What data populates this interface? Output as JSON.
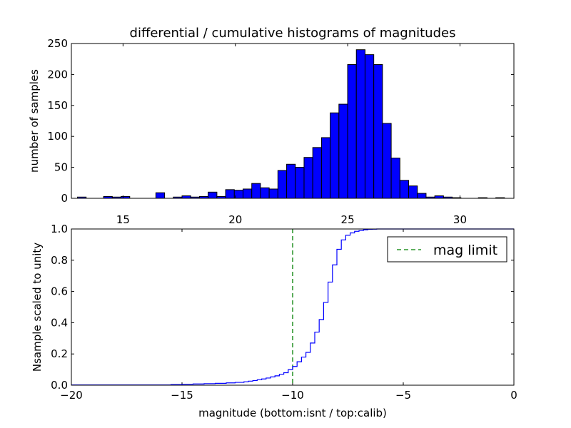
{
  "title": "differential / cumulative histograms of magnitudes",
  "colors": {
    "bar_fill": "#0000ff",
    "bar_edge": "#000000",
    "step_line": "#0000ff",
    "limit_line": "#008000",
    "axes": "#000000",
    "background": "#ffffff"
  },
  "chart_data": [
    {
      "type": "bar",
      "subtype": "histogram",
      "title": "differential / cumulative histograms of magnitudes",
      "xlabel": "",
      "ylabel": "number of samples",
      "xlim": [
        12.7,
        32.4
      ],
      "ylim": [
        0,
        250
      ],
      "xticks": [
        15,
        20,
        25,
        30
      ],
      "xtick_labels": [
        "15",
        "20",
        "25",
        "30"
      ],
      "yticks": [
        0,
        50,
        100,
        150,
        200,
        250
      ],
      "ytick_labels": [
        "0",
        "50",
        "100",
        "150",
        "200",
        "250"
      ],
      "xtick_labels_position": "bottom",
      "bin_start": 12.97,
      "bin_width": 0.388,
      "counts": [
        2,
        0,
        0,
        3,
        2,
        3,
        0,
        0,
        0,
        9,
        0,
        2,
        4,
        2,
        3,
        10,
        3,
        14,
        13,
        15,
        24,
        17,
        15,
        45,
        55,
        50,
        66,
        82,
        98,
        138,
        152,
        216,
        240,
        232,
        216,
        121,
        65,
        29,
        20,
        8,
        2,
        4,
        2,
        1,
        0,
        0,
        1,
        0,
        1,
        0
      ]
    },
    {
      "type": "line",
      "subtype": "cumulative-step",
      "xlabel": "magnitude (bottom:isnt / top:calib)",
      "ylabel": "Nsample scaled to unity",
      "xlim": [
        -20,
        0
      ],
      "ylim": [
        0.0,
        1.0
      ],
      "xticks": [
        -20,
        -15,
        -10,
        -5,
        0
      ],
      "xtick_labels": [
        "−20",
        "−15",
        "−10",
        "−5",
        "0"
      ],
      "yticks": [
        0.0,
        0.2,
        0.4,
        0.6,
        0.8,
        1.0
      ],
      "ytick_labels": [
        "0.0",
        "0.2",
        "0.4",
        "0.6",
        "0.8",
        "1.0"
      ],
      "legend_position": "top-right",
      "series": [
        {
          "x": [
            -20.0,
            -15.5,
            -15.0,
            -14.5,
            -14.0,
            -13.5,
            -13.0,
            -12.6,
            -12.2,
            -12.0,
            -11.8,
            -11.6,
            -11.4,
            -11.2,
            -11.0,
            -10.8,
            -10.6,
            -10.4,
            -10.2,
            -10.0,
            -9.8,
            -9.6,
            -9.4,
            -9.2,
            -9.0,
            -8.8,
            -8.6,
            -8.4,
            -8.2,
            -8.0,
            -7.8,
            -7.6,
            -7.4,
            -7.2,
            -7.0,
            -6.8,
            -6.6,
            -6.4,
            -6.2,
            -6.0,
            -5.6,
            0.0
          ],
          "y": [
            0.002,
            0.004,
            0.006,
            0.008,
            0.01,
            0.012,
            0.015,
            0.018,
            0.022,
            0.026,
            0.03,
            0.035,
            0.04,
            0.046,
            0.053,
            0.06,
            0.07,
            0.08,
            0.1,
            0.12,
            0.15,
            0.18,
            0.21,
            0.27,
            0.34,
            0.42,
            0.53,
            0.66,
            0.77,
            0.87,
            0.93,
            0.96,
            0.975,
            0.985,
            0.99,
            0.995,
            0.998,
            0.999,
            1.0,
            1.0,
            1.0,
            1.0
          ]
        }
      ],
      "vline": {
        "name": "mag limit",
        "x": -10.0,
        "style": "dashed"
      },
      "legend": [
        {
          "label": "mag limit",
          "style": "dashed"
        }
      ]
    }
  ]
}
